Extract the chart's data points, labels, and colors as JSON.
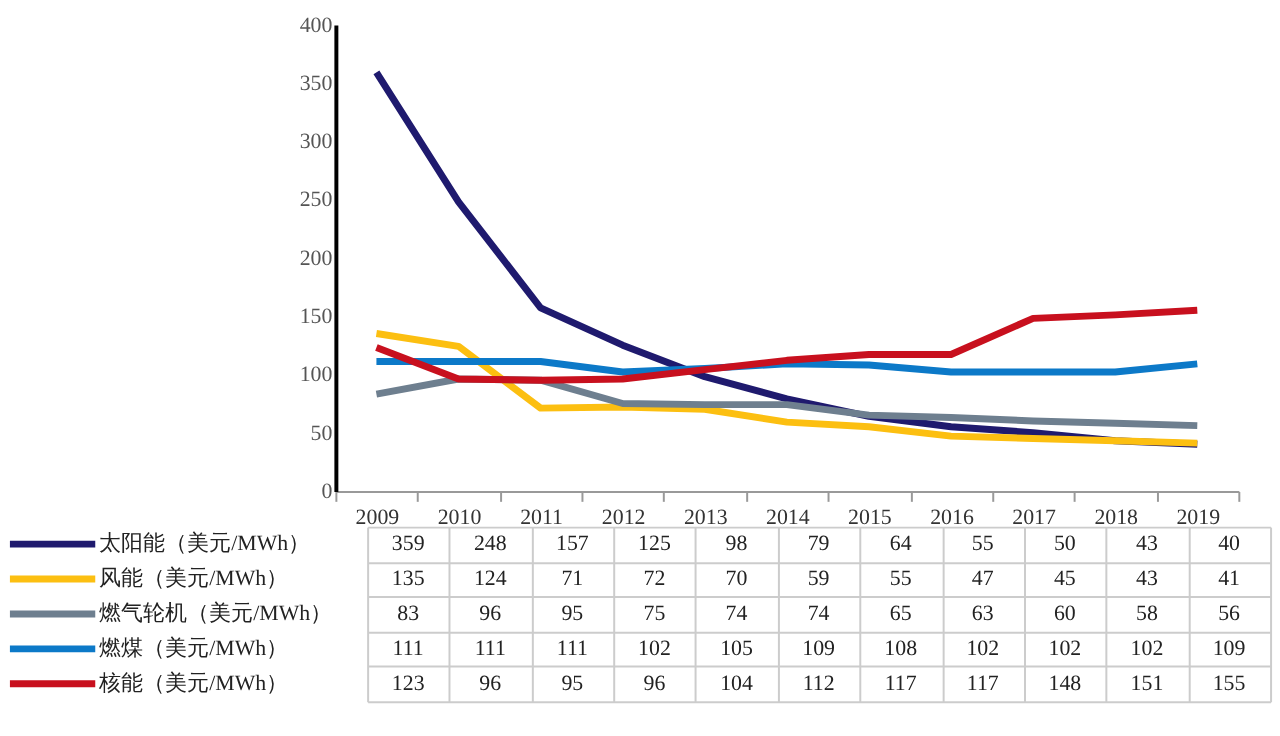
{
  "chart_data": {
    "type": "line",
    "categories": [
      "2009",
      "2010",
      "2011",
      "2012",
      "2013",
      "2014",
      "2015",
      "2016",
      "2017",
      "2018",
      "2019"
    ],
    "series": [
      {
        "name": "太阳能（美元/MWh）",
        "color": "#1f1a6e",
        "values": [
          359,
          248,
          157,
          125,
          98,
          79,
          64,
          55,
          50,
          43,
          40
        ]
      },
      {
        "name": "风能（美元/MWh）",
        "color": "#fcbf11",
        "values": [
          135,
          124,
          71,
          72,
          70,
          59,
          55,
          47,
          45,
          43,
          41
        ]
      },
      {
        "name": "燃气轮机（美元/MWh）",
        "color": "#6e7f8f",
        "values": [
          83,
          96,
          95,
          75,
          74,
          74,
          65,
          63,
          60,
          58,
          56
        ]
      },
      {
        "name": "燃煤（美元/MWh）",
        "color": "#0c79c8",
        "values": [
          111,
          111,
          111,
          102,
          105,
          109,
          108,
          102,
          102,
          102,
          109
        ]
      },
      {
        "name": "核能（美元/MWh）",
        "color": "#c8101e",
        "values": [
          123,
          96,
          95,
          96,
          104,
          112,
          117,
          117,
          148,
          151,
          155
        ]
      }
    ],
    "ylim": [
      0,
      400
    ],
    "yticks": [
      0,
      50,
      100,
      150,
      200,
      250,
      300,
      350,
      400
    ],
    "grid": false,
    "legend": "bottom left",
    "data_labels": true,
    "marker": "none",
    "line_style": "solid"
  }
}
